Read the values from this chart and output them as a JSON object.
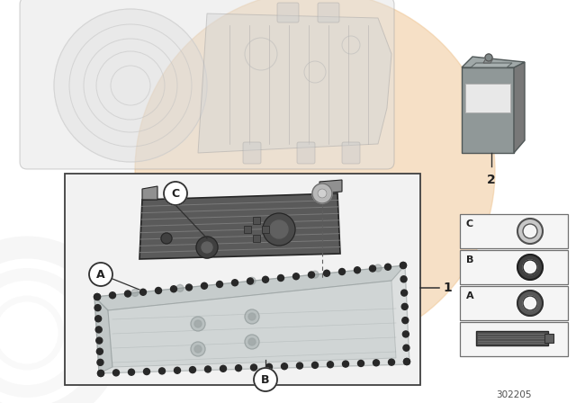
{
  "bg_color": "#ffffff",
  "peach_color": "#f0c898",
  "gray_watermark": "#d0d0d0",
  "part_number": "302205",
  "label_1": "1",
  "label_2": "2",
  "label_A": "A",
  "label_B": "B",
  "label_C": "C",
  "canister_body": "#909898",
  "canister_top": "#a0a8a8",
  "canister_label": "#e8e8e8",
  "filter_dark": "#5a5a5a",
  "filter_mid": "#707070",
  "pan_body": "#c8cece",
  "pan_edge": "#909898",
  "gasket_color": "#282828",
  "box_edge": "#404040",
  "ring_C_fill": "#c8c8c8",
  "ring_C_edge": "#505050",
  "ring_B_fill": "#404040",
  "ring_B_edge": "#202020",
  "ring_A_fill": "#585858",
  "ring_A_edge": "#303030"
}
